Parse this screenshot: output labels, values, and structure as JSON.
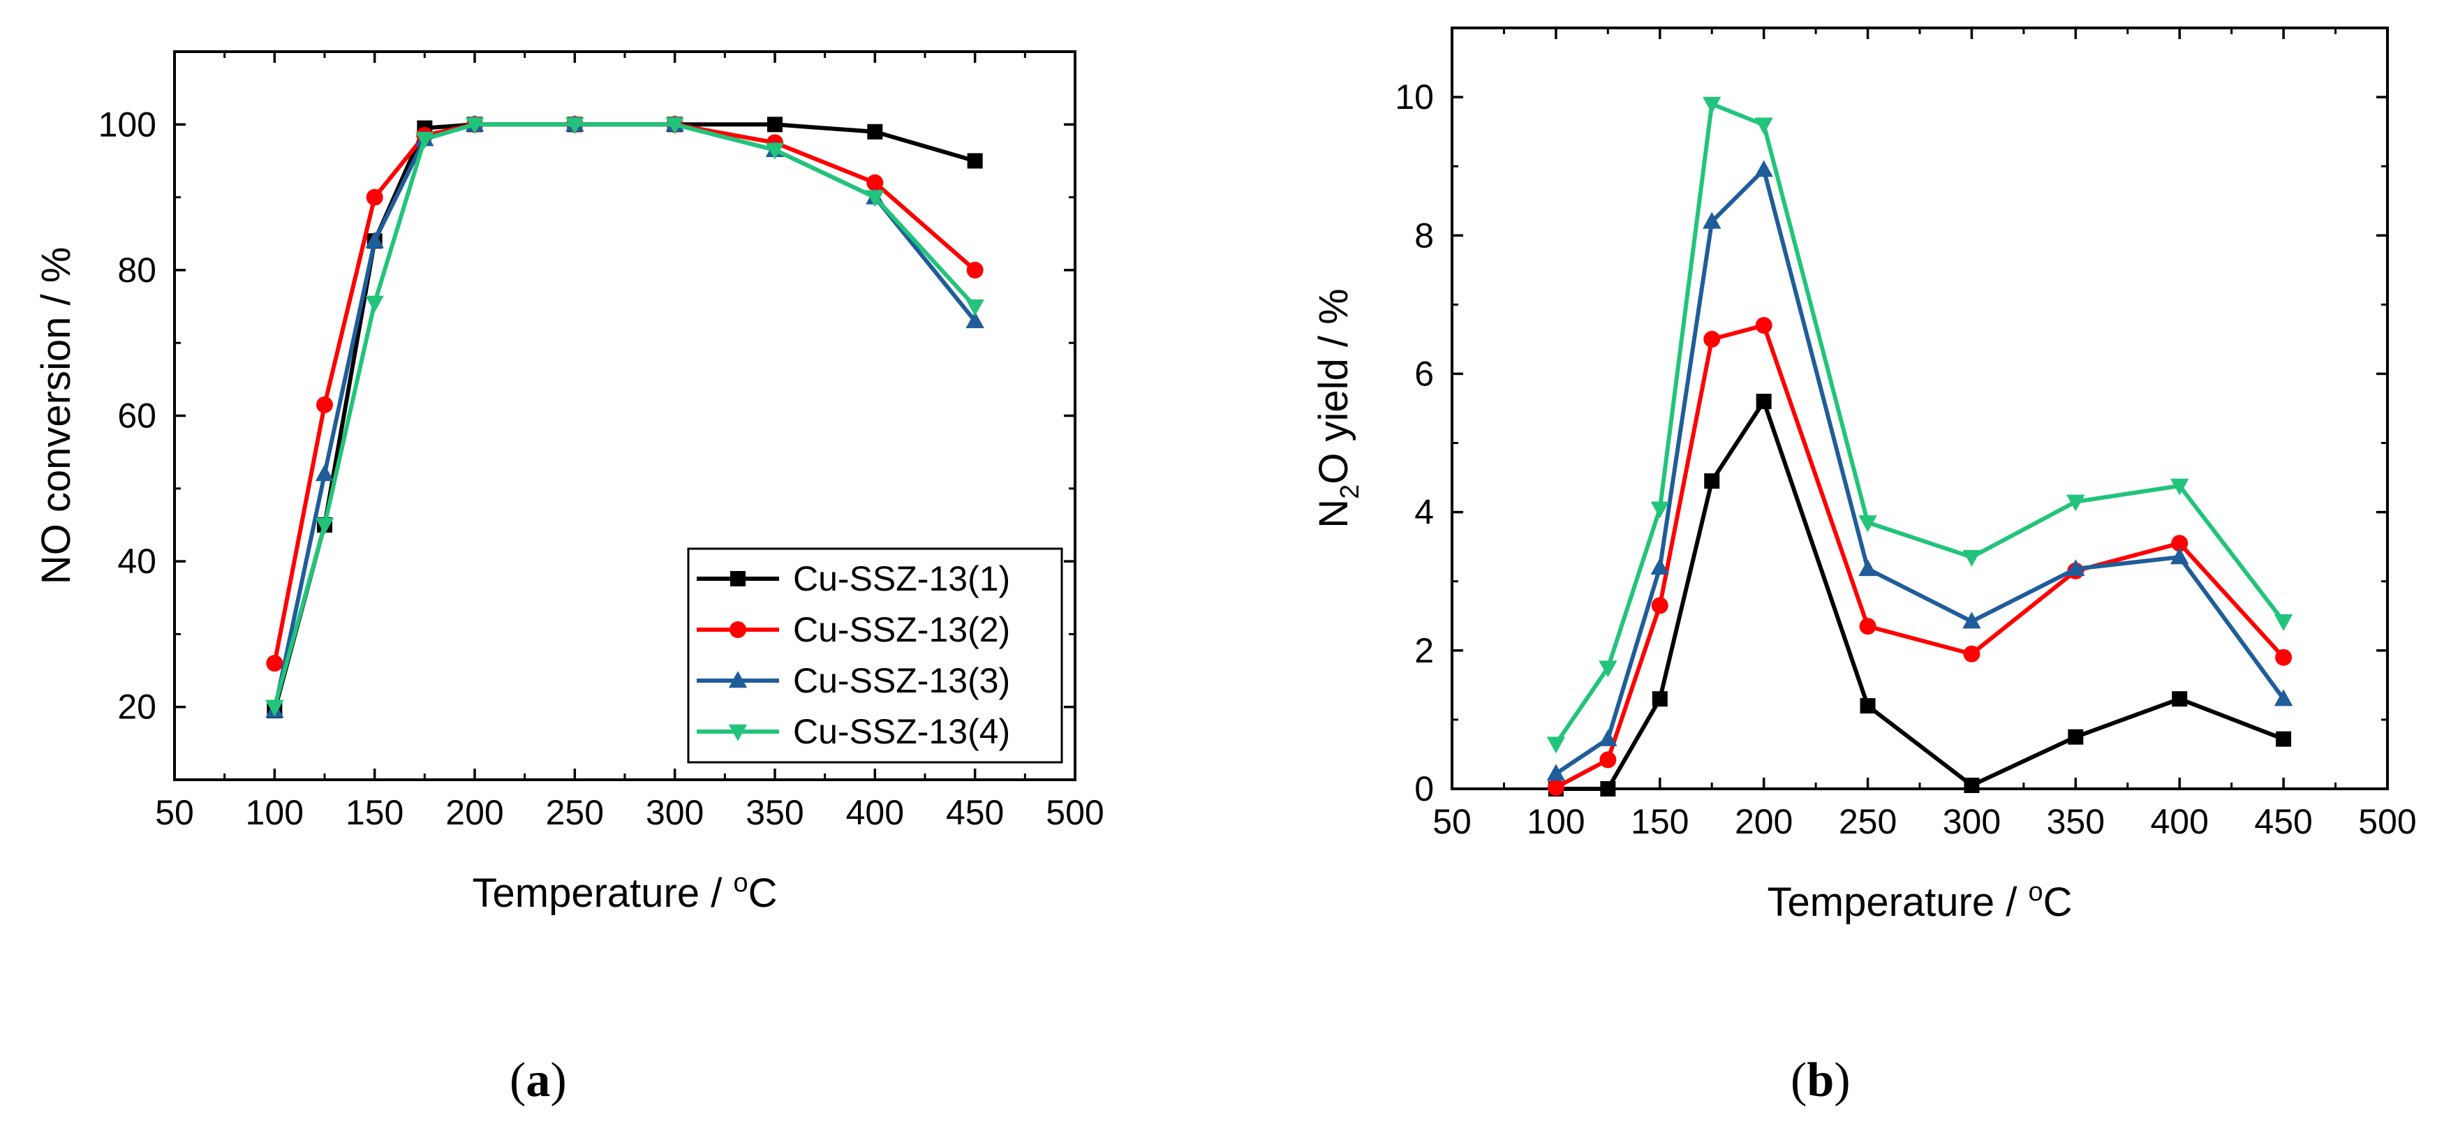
{
  "panels": [
    {
      "caption": "a",
      "chart": 0
    },
    {
      "caption": "b",
      "chart": 1
    }
  ],
  "chart_data": [
    {
      "type": "line",
      "title": "",
      "xlabel": "Temperature / °C",
      "xlabel_parts": [
        "Temperature / ",
        "o",
        "C"
      ],
      "ylabel": "NO conversion / %",
      "xlim": [
        50,
        500
      ],
      "ylim": [
        10,
        110
      ],
      "xticks": [
        50,
        100,
        150,
        200,
        250,
        300,
        350,
        400,
        450,
        500
      ],
      "yticks": [
        20,
        40,
        60,
        80,
        100
      ],
      "legend": "bottom-right",
      "x": [
        100,
        125,
        150,
        175,
        200,
        250,
        300,
        350,
        400,
        450
      ],
      "series": [
        {
          "name": "Cu-SSZ-13(1)",
          "color": "#000000",
          "marker": "square",
          "values": [
            19.5,
            45,
            84,
            99.5,
            100,
            100,
            100,
            100,
            99,
            95
          ]
        },
        {
          "name": "Cu-SSZ-13(2)",
          "color": "#ff0000",
          "marker": "circle",
          "values": [
            26,
            61.5,
            90,
            98.5,
            100,
            100,
            100,
            97.5,
            92,
            80
          ]
        },
        {
          "name": "Cu-SSZ-13(3)",
          "color": "#1f5d9a",
          "marker": "triangle-up",
          "values": [
            19.5,
            52,
            84,
            98,
            100,
            100,
            100,
            96.5,
            90,
            73
          ]
        },
        {
          "name": "Cu-SSZ-13(4)",
          "color": "#21c47a",
          "marker": "triangle-down",
          "values": [
            20,
            45,
            75.5,
            98,
            100,
            100,
            100,
            96.5,
            90,
            75
          ]
        }
      ]
    },
    {
      "type": "line",
      "title": "",
      "xlabel": "Temperature / °C",
      "xlabel_parts": [
        "Temperature / ",
        "o",
        "C"
      ],
      "ylabel": "N2O yield / %",
      "ylabel_parts": [
        "N",
        "2",
        "O yield / %"
      ],
      "xlim": [
        50,
        500
      ],
      "ylim": [
        0,
        11
      ],
      "xticks": [
        50,
        100,
        150,
        200,
        250,
        300,
        350,
        400,
        450,
        500
      ],
      "yticks": [
        0,
        2,
        4,
        6,
        8,
        10
      ],
      "legend": "none",
      "x": [
        100,
        125,
        150,
        175,
        200,
        250,
        300,
        350,
        400,
        450
      ],
      "series": [
        {
          "name": "Cu-SSZ-13(1)",
          "color": "#000000",
          "marker": "square",
          "values": [
            0,
            0,
            1.3,
            4.45,
            5.6,
            1.2,
            0.05,
            0.75,
            1.3,
            0.72
          ]
        },
        {
          "name": "Cu-SSZ-13(2)",
          "color": "#ff0000",
          "marker": "circle",
          "values": [
            0.02,
            0.42,
            2.65,
            6.5,
            6.7,
            2.35,
            1.95,
            3.15,
            3.55,
            1.9
          ]
        },
        {
          "name": "Cu-SSZ-13(3)",
          "color": "#1f5d9a",
          "marker": "triangle-up",
          "values": [
            0.22,
            0.72,
            3.2,
            8.2,
            8.95,
            3.18,
            2.42,
            3.18,
            3.35,
            1.3
          ]
        },
        {
          "name": "Cu-SSZ-13(4)",
          "color": "#21c47a",
          "marker": "triangle-down",
          "values": [
            0.65,
            1.75,
            4.05,
            9.9,
            9.6,
            3.85,
            3.35,
            4.15,
            4.38,
            2.42
          ]
        }
      ]
    }
  ]
}
